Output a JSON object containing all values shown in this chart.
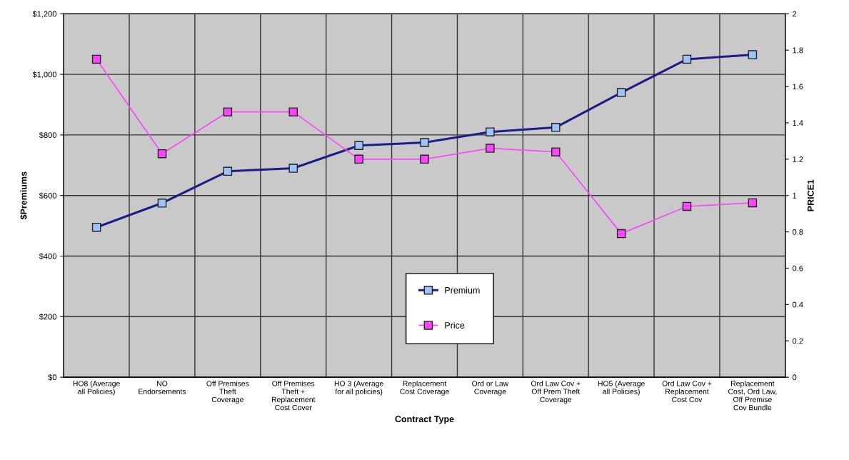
{
  "chart_data": {
    "type": "line",
    "xlabel": "Contract Type",
    "ylabel": "$Premiums",
    "y2label": "PRICE1",
    "categories": [
      "HO8 (Average\nall Policies)",
      "NO\nEndorsements",
      "Off Premises\nTheft\nCoverage",
      "Off Premises\nTheft +\nReplacement\nCost Cover",
      "HO 3 (Average\nfor all policies)",
      "Replacement\nCost Coverage",
      "Ord or Law\nCoverage",
      "Ord Law Cov +\nOff Prem Theft\nCoverage",
      "HO5 (Average\nall Policies)",
      "Ord Law Cov +\nReplacement\nCost Cov",
      "Replacement\nCost, Ord Law,\nOff Premise\nCov Bundle"
    ],
    "series": [
      {
        "name": "Premium",
        "color": "#1c1c8a",
        "values": [
          495,
          575,
          680,
          690,
          765,
          775,
          810,
          825,
          940,
          1050,
          1065
        ]
      },
      {
        "name": "Price",
        "color": "#ff44ff",
        "axis": "y2",
        "values": [
          1.75,
          1.23,
          1.46,
          1.46,
          1.2,
          1.2,
          1.26,
          1.24,
          0.79,
          0.94,
          0.96
        ]
      }
    ],
    "ylim": [
      0,
      1200
    ],
    "yticks": [
      {
        "value": 0,
        "label": "$0"
      },
      {
        "value": 200,
        "label": "$200"
      },
      {
        "value": 400,
        "label": "$400"
      },
      {
        "value": 600,
        "label": "$600"
      },
      {
        "value": 800,
        "label": "$800"
      },
      {
        "value": 1000,
        "label": "$1,000"
      },
      {
        "value": 1200,
        "label": "$1,200"
      }
    ],
    "y2lim": [
      0,
      2
    ],
    "y2ticks": [
      0,
      0.2,
      0.4,
      0.6,
      0.8,
      1,
      1.2,
      1.4,
      1.6,
      1.8,
      2
    ],
    "grid": true,
    "legend": "bottom",
    "marker": "square",
    "line_style": "solid"
  }
}
